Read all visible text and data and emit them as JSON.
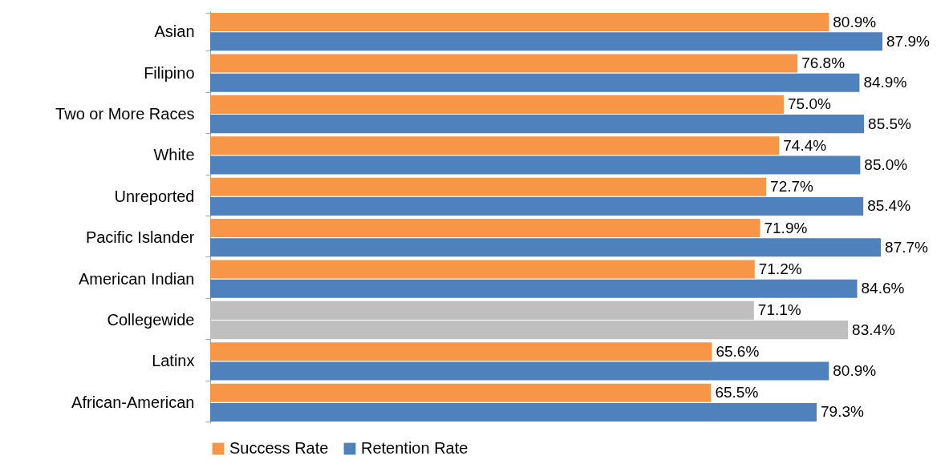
{
  "chart_data": {
    "type": "bar",
    "orientation": "horizontal",
    "categories": [
      "Asian",
      "Filipino",
      "Two or More Races",
      "White",
      "Unreported",
      "Pacific Islander",
      "American Indian",
      "Collegewide",
      "Latinx",
      "African-American"
    ],
    "series": [
      {
        "name": "Success Rate",
        "color": "#f79646",
        "colors": [
          "#f79646",
          "#f79646",
          "#f79646",
          "#f79646",
          "#f79646",
          "#f79646",
          "#f79646",
          "#bfbfbf",
          "#f79646",
          "#f79646"
        ],
        "values": [
          80.9,
          76.8,
          75.0,
          74.4,
          72.7,
          71.9,
          71.2,
          71.1,
          65.6,
          65.5
        ],
        "value_labels": [
          "80.9%",
          "76.8%",
          "75.0%",
          "74.4%",
          "72.7%",
          "71.9%",
          "71.2%",
          "71.1%",
          "65.6%",
          "65.5%"
        ]
      },
      {
        "name": "Retention Rate",
        "color": "#4f81bd",
        "colors": [
          "#4f81bd",
          "#4f81bd",
          "#4f81bd",
          "#4f81bd",
          "#4f81bd",
          "#4f81bd",
          "#4f81bd",
          "#bfbfbf",
          "#4f81bd",
          "#4f81bd"
        ],
        "values": [
          87.9,
          84.9,
          85.5,
          85.0,
          85.4,
          87.7,
          84.6,
          83.4,
          80.9,
          79.3
        ],
        "value_labels": [
          "87.9%",
          "84.9%",
          "85.5%",
          "85.0%",
          "85.4%",
          "87.7%",
          "84.6%",
          "83.4%",
          "80.9%",
          "79.3%"
        ]
      }
    ],
    "tick_labels": "y",
    "grid": false,
    "legend": "bottom"
  }
}
